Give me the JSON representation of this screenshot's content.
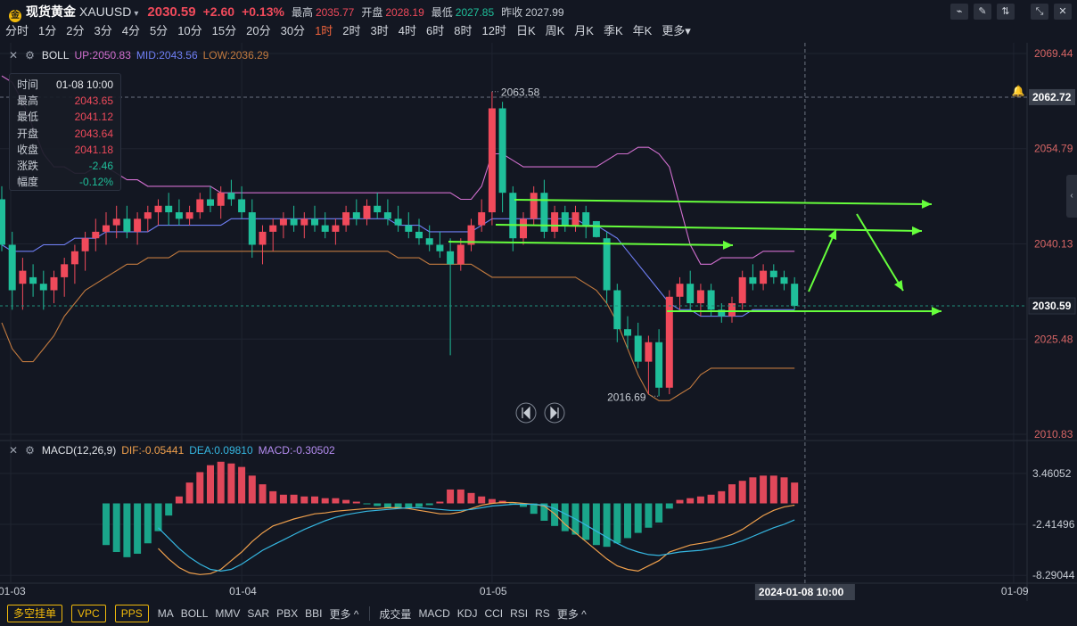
{
  "header": {
    "symbol_badge": "金",
    "symbol_name": "现货黄金",
    "symbol_code": "XAUUSD",
    "caret": "▾",
    "last_price": "2030.59",
    "change": "+2.60",
    "change_pct": "+0.13%",
    "stats": [
      {
        "label": "最高",
        "value": "2035.77",
        "tone": "red"
      },
      {
        "label": "开盘",
        "value": "2028.19",
        "tone": "red"
      },
      {
        "label": "最低",
        "value": "2027.85",
        "tone": "green"
      },
      {
        "label": "昨收",
        "value": "2027.99",
        "tone": "white"
      }
    ],
    "icons": [
      "indicator-icon",
      "draw-icon",
      "compare-icon",
      "expand-icon",
      "close-icon"
    ]
  },
  "timeframes": {
    "items": [
      "分时",
      "1分",
      "2分",
      "3分",
      "4分",
      "5分",
      "10分",
      "15分",
      "20分",
      "30分",
      "1时",
      "2时",
      "3时",
      "4时",
      "6时",
      "8时",
      "12时",
      "日K",
      "周K",
      "月K",
      "季K",
      "年K",
      "更多▾"
    ],
    "active": "1时"
  },
  "boll_legend": {
    "name": "BOLL",
    "up": "UP:2050.83",
    "mid": "MID:2043.56",
    "low": "LOW:2036.29",
    "colors": {
      "up": "#d16fcf",
      "mid": "#6f7ff5",
      "low": "#c27a3f"
    }
  },
  "macd_legend": {
    "name": "MACD(12,26,9)",
    "dif": "DIF:-0.05441",
    "dea": "DEA:0.09810",
    "macd": "MACD:-0.30502",
    "colors": {
      "dif": "#f0a04c",
      "dea": "#35b6e0",
      "macd": "#b48cf0"
    }
  },
  "info_box": {
    "rows": [
      {
        "label": "时间",
        "value": "01-08 10:00",
        "tone": "white"
      },
      {
        "label": "最高",
        "value": "2043.65",
        "tone": "red"
      },
      {
        "label": "最低",
        "value": "2041.12",
        "tone": "red"
      },
      {
        "label": "开盘",
        "value": "2043.64",
        "tone": "red"
      },
      {
        "label": "收盘",
        "value": "2041.18",
        "tone": "red"
      },
      {
        "label": "涨跌",
        "value": "-2.46",
        "tone": "green"
      },
      {
        "label": "幅度",
        "value": "-0.12%",
        "tone": "green"
      }
    ]
  },
  "bottom_bar": {
    "buttons": [
      "多空挂单",
      "VPC",
      "PPS"
    ],
    "main_indicators": [
      "MA",
      "BOLL",
      "MMV",
      "SAR",
      "PBX",
      "BBI",
      "更多 ^"
    ],
    "sub_indicators": [
      "成交量",
      "MACD",
      "KDJ",
      "CCI",
      "RSI",
      "RS",
      "更多 ^"
    ]
  },
  "chart_data": {
    "type": "candlestick",
    "price_axis": {
      "ticks": [
        2069.44,
        2054.79,
        2040.13,
        2025.48,
        2010.83
      ],
      "tick_labels": [
        "2069.44",
        "2054.79",
        "2040.13",
        "2025.48",
        "2010.83"
      ],
      "ylim": [
        2010.83,
        2069.44
      ]
    },
    "crosshair_price": "2062.72",
    "current_price": "2030.59",
    "crosshair_time": "2024-01-08 10:00",
    "x_labels": [
      {
        "label": "01-03",
        "index": 0
      },
      {
        "label": "01-04",
        "index": 23
      },
      {
        "label": "01-05",
        "index": 47
      },
      {
        "label": "01-09",
        "index": 97
      }
    ],
    "crosshair_index": 77,
    "high_annotation": "2063.58",
    "low_annotation": "2016.69",
    "candles": [
      {
        "o": 2047,
        "h": 2049,
        "l": 2039,
        "c": 2040
      },
      {
        "o": 2040,
        "h": 2042,
        "l": 2030,
        "c": 2033
      },
      {
        "o": 2034,
        "h": 2038,
        "l": 2030,
        "c": 2036
      },
      {
        "o": 2035,
        "h": 2037,
        "l": 2032,
        "c": 2034
      },
      {
        "o": 2034,
        "h": 2036,
        "l": 2030,
        "c": 2033
      },
      {
        "o": 2033,
        "h": 2036,
        "l": 2031,
        "c": 2035
      },
      {
        "o": 2035,
        "h": 2038,
        "l": 2032,
        "c": 2037
      },
      {
        "o": 2037,
        "h": 2040,
        "l": 2034,
        "c": 2039
      },
      {
        "o": 2039,
        "h": 2042,
        "l": 2036,
        "c": 2041
      },
      {
        "o": 2041,
        "h": 2044,
        "l": 2039,
        "c": 2042
      },
      {
        "o": 2042,
        "h": 2045,
        "l": 2040,
        "c": 2043
      },
      {
        "o": 2043,
        "h": 2046,
        "l": 2041,
        "c": 2044
      },
      {
        "o": 2044,
        "h": 2046,
        "l": 2041,
        "c": 2042
      },
      {
        "o": 2042,
        "h": 2045,
        "l": 2040,
        "c": 2044
      },
      {
        "o": 2044,
        "h": 2046,
        "l": 2042,
        "c": 2045
      },
      {
        "o": 2045,
        "h": 2047,
        "l": 2043,
        "c": 2046
      },
      {
        "o": 2046,
        "h": 2048,
        "l": 2043,
        "c": 2045
      },
      {
        "o": 2045,
        "h": 2047,
        "l": 2043,
        "c": 2044
      },
      {
        "o": 2044,
        "h": 2046,
        "l": 2043,
        "c": 2045
      },
      {
        "o": 2045,
        "h": 2048,
        "l": 2044,
        "c": 2047
      },
      {
        "o": 2047,
        "h": 2049,
        "l": 2045,
        "c": 2046
      },
      {
        "o": 2046,
        "h": 2049,
        "l": 2044,
        "c": 2048
      },
      {
        "o": 2048,
        "h": 2050,
        "l": 2046,
        "c": 2047
      },
      {
        "o": 2047,
        "h": 2049,
        "l": 2044,
        "c": 2045
      },
      {
        "o": 2045,
        "h": 2047,
        "l": 2038,
        "c": 2040
      },
      {
        "o": 2040,
        "h": 2043,
        "l": 2037,
        "c": 2042
      },
      {
        "o": 2042,
        "h": 2044,
        "l": 2039,
        "c": 2043
      },
      {
        "o": 2043,
        "h": 2045,
        "l": 2041,
        "c": 2044
      },
      {
        "o": 2044,
        "h": 2046,
        "l": 2042,
        "c": 2043
      },
      {
        "o": 2043,
        "h": 2045,
        "l": 2041,
        "c": 2044
      },
      {
        "o": 2044,
        "h": 2046,
        "l": 2042,
        "c": 2043
      },
      {
        "o": 2043,
        "h": 2045,
        "l": 2041,
        "c": 2042
      },
      {
        "o": 2042,
        "h": 2044,
        "l": 2040,
        "c": 2043
      },
      {
        "o": 2043,
        "h": 2046,
        "l": 2042,
        "c": 2045
      },
      {
        "o": 2045,
        "h": 2047,
        "l": 2043,
        "c": 2044
      },
      {
        "o": 2044,
        "h": 2047,
        "l": 2043,
        "c": 2046
      },
      {
        "o": 2046,
        "h": 2048,
        "l": 2044,
        "c": 2045
      },
      {
        "o": 2045,
        "h": 2047,
        "l": 2043,
        "c": 2044
      },
      {
        "o": 2044,
        "h": 2046,
        "l": 2042,
        "c": 2043
      },
      {
        "o": 2043,
        "h": 2045,
        "l": 2041,
        "c": 2042
      },
      {
        "o": 2042,
        "h": 2044,
        "l": 2040,
        "c": 2041
      },
      {
        "o": 2041,
        "h": 2043,
        "l": 2039,
        "c": 2040
      },
      {
        "o": 2040,
        "h": 2042,
        "l": 2038,
        "c": 2039
      },
      {
        "o": 2039,
        "h": 2041,
        "l": 2023,
        "c": 2037
      },
      {
        "o": 2037,
        "h": 2041,
        "l": 2036,
        "c": 2040
      },
      {
        "o": 2040,
        "h": 2044,
        "l": 2039,
        "c": 2043
      },
      {
        "o": 2043,
        "h": 2047,
        "l": 2042,
        "c": 2045
      },
      {
        "o": 2045,
        "h": 2063.58,
        "l": 2043,
        "c": 2061
      },
      {
        "o": 2061,
        "h": 2062,
        "l": 2045,
        "c": 2048
      },
      {
        "o": 2048,
        "h": 2049,
        "l": 2039,
        "c": 2041
      },
      {
        "o": 2041,
        "h": 2045,
        "l": 2040,
        "c": 2044
      },
      {
        "o": 2044,
        "h": 2049,
        "l": 2043,
        "c": 2048
      },
      {
        "o": 2048,
        "h": 2050,
        "l": 2041,
        "c": 2042
      },
      {
        "o": 2042,
        "h": 2046,
        "l": 2041,
        "c": 2045
      },
      {
        "o": 2045,
        "h": 2046,
        "l": 2042,
        "c": 2043
      },
      {
        "o": 2043,
        "h": 2046,
        "l": 2042,
        "c": 2045
      },
      {
        "o": 2045,
        "h": 2046,
        "l": 2041,
        "c": 2043
      },
      {
        "o": 2043.64,
        "h": 2043.65,
        "l": 2041.12,
        "c": 2041.18
      },
      {
        "o": 2041,
        "h": 2042,
        "l": 2031,
        "c": 2033
      },
      {
        "o": 2033,
        "h": 2034,
        "l": 2025,
        "c": 2027
      },
      {
        "o": 2027,
        "h": 2029,
        "l": 2024,
        "c": 2026
      },
      {
        "o": 2026,
        "h": 2028,
        "l": 2021,
        "c": 2022
      },
      {
        "o": 2022,
        "h": 2026,
        "l": 2017,
        "c": 2025
      },
      {
        "o": 2025,
        "h": 2027,
        "l": 2016.69,
        "c": 2018
      },
      {
        "o": 2018,
        "h": 2033,
        "l": 2017,
        "c": 2032
      },
      {
        "o": 2032,
        "h": 2035,
        "l": 2030,
        "c": 2034
      },
      {
        "o": 2034,
        "h": 2036,
        "l": 2030,
        "c": 2031
      },
      {
        "o": 2031,
        "h": 2034,
        "l": 2029,
        "c": 2033
      },
      {
        "o": 2033,
        "h": 2034,
        "l": 2029,
        "c": 2030
      },
      {
        "o": 2030,
        "h": 2031,
        "l": 2028,
        "c": 2029
      },
      {
        "o": 2029,
        "h": 2032,
        "l": 2028,
        "c": 2031
      },
      {
        "o": 2031,
        "h": 2036,
        "l": 2030,
        "c": 2035
      },
      {
        "o": 2035,
        "h": 2037,
        "l": 2033,
        "c": 2034
      },
      {
        "o": 2034,
        "h": 2037,
        "l": 2033,
        "c": 2036
      },
      {
        "o": 2036,
        "h": 2037,
        "l": 2034,
        "c": 2035
      },
      {
        "o": 2035,
        "h": 2036,
        "l": 2033,
        "c": 2034
      },
      {
        "o": 2034,
        "h": 2035,
        "l": 2030,
        "c": 2030.59
      }
    ],
    "boll_up": [
      2066,
      2065,
      2062,
      2058,
      2054,
      2052,
      2052,
      2051,
      2051,
      2052,
      2052,
      2051,
      2050,
      2050,
      2049,
      2049,
      2049,
      2049,
      2049,
      2049,
      2049,
      2048,
      2048,
      2048,
      2048,
      2048,
      2048,
      2048,
      2048,
      2048,
      2048,
      2048,
      2048,
      2048,
      2048,
      2048,
      2048,
      2048,
      2048,
      2048,
      2048,
      2048,
      2048,
      2048,
      2047,
      2047,
      2049,
      2054,
      2054,
      2053,
      2052,
      2052,
      2052,
      2052,
      2052,
      2052,
      2052,
      2052,
      2053,
      2054,
      2054,
      2055,
      2055,
      2054,
      2052,
      2046,
      2040,
      2037,
      2037,
      2038,
      2038,
      2038,
      2038,
      2039,
      2039,
      2039,
      2039
    ],
    "boll_mid": [
      2040,
      2039,
      2039,
      2039,
      2040,
      2040,
      2040,
      2041,
      2041,
      2041,
      2042,
      2042,
      2042,
      2042,
      2042,
      2043,
      2043,
      2043,
      2043,
      2043,
      2043,
      2043,
      2044,
      2044,
      2044,
      2044,
      2044,
      2044,
      2044,
      2044,
      2044,
      2044,
      2044,
      2044,
      2044,
      2044,
      2044,
      2044,
      2043,
      2043,
      2043,
      2042,
      2042,
      2042,
      2042,
      2042,
      2043,
      2044,
      2044,
      2044,
      2044,
      2044,
      2044,
      2044,
      2044,
      2044,
      2043,
      2043,
      2042,
      2041,
      2039,
      2037,
      2035,
      2033,
      2031,
      2030,
      2030,
      2029,
      2029,
      2029,
      2029,
      2029,
      2030,
      2030,
      2030,
      2030,
      2030
    ],
    "boll_low": [
      2028,
      2024,
      2022,
      2022,
      2024,
      2026,
      2029,
      2031,
      2033,
      2034,
      2035,
      2036,
      2037,
      2037,
      2038,
      2038,
      2038,
      2039,
      2039,
      2039,
      2039,
      2039,
      2039,
      2039,
      2039,
      2039,
      2039,
      2039,
      2039,
      2039,
      2039,
      2039,
      2039,
      2039,
      2039,
      2039,
      2039,
      2039,
      2038,
      2038,
      2038,
      2037,
      2037,
      2037,
      2037,
      2037,
      2036,
      2035,
      2035,
      2035,
      2035,
      2035,
      2035,
      2035,
      2035,
      2035,
      2034,
      2033,
      2031,
      2028,
      2024,
      2020,
      2017,
      2016,
      2016,
      2017,
      2018,
      2020,
      2021,
      2021,
      2021,
      2021,
      2021,
      2021,
      2021,
      2021,
      2021
    ],
    "macd_axis": {
      "tick_labels": [
        "3.46052",
        "-2.41496",
        "-8.29044"
      ],
      "ticks": [
        3.46052,
        -2.41496,
        -8.29044
      ],
      "ylim": [
        -9.4,
        5.6
      ]
    },
    "macd_hist": [
      -4.8,
      -5.6,
      -6.2,
      -5.8,
      -4.6,
      -3.2,
      -1.4,
      0.8,
      2.4,
      3.6,
      4.4,
      4.8,
      4.6,
      4.2,
      3.2,
      2.2,
      1.4,
      1.0,
      1.0,
      0.8,
      0.8,
      0.6,
      0.6,
      0.4,
      0.2,
      -0.1,
      -0.3,
      -0.5,
      -0.6,
      -0.5,
      -0.4,
      -0.2,
      0.2,
      1.6,
      1.6,
      1.2,
      0.8,
      0.5,
      0.3,
      -0.1,
      -0.4,
      -1.2,
      -2.0,
      -2.6,
      -3.2,
      -3.6,
      -4.2,
      -4.8,
      -5.0,
      -4.6,
      -4.0,
      -3.4,
      -2.8,
      -2.2,
      -0.6,
      0.4,
      0.6,
      0.8,
      1.0,
      1.4,
      2.2,
      2.6,
      3.0,
      3.2,
      3.2,
      3.0,
      2.4
    ],
    "macd_dif": [
      -5.2,
      -6.4,
      -7.4,
      -8.0,
      -8.2,
      -8.1,
      -7.6,
      -6.6,
      -5.6,
      -4.4,
      -3.4,
      -2.6,
      -2.2,
      -1.8,
      -1.5,
      -1.2,
      -1.1,
      -0.9,
      -0.8,
      -0.7,
      -0.6,
      -0.6,
      -0.5,
      -0.5,
      -0.6,
      -0.8,
      -1.0,
      -1.2,
      -1.2,
      -1.0,
      -0.6,
      -0.2,
      0.0,
      0.1,
      0.1,
      0.0,
      -0.1,
      -0.3,
      -1.2,
      -2.4,
      -3.4,
      -4.4,
      -5.4,
      -6.4,
      -7.2,
      -7.6,
      -7.8,
      -7.2,
      -6.6,
      -5.6,
      -5.2,
      -4.8,
      -4.6,
      -4.4,
      -4.0,
      -3.6,
      -3.0,
      -2.2,
      -1.4,
      -0.8,
      -0.4,
      -0.2
    ],
    "macd_dea": [
      -2.8,
      -4.0,
      -5.2,
      -6.2,
      -7.0,
      -7.6,
      -7.8,
      -7.6,
      -7.0,
      -6.2,
      -5.4,
      -4.8,
      -4.2,
      -3.6,
      -3.0,
      -2.5,
      -2.0,
      -1.6,
      -1.3,
      -1.1,
      -0.9,
      -0.8,
      -0.7,
      -0.6,
      -0.5,
      -0.5,
      -0.6,
      -0.7,
      -0.8,
      -0.8,
      -0.7,
      -0.5,
      -0.3,
      -0.2,
      -0.1,
      -0.1,
      -0.1,
      -0.2,
      -0.6,
      -1.2,
      -1.8,
      -2.5,
      -3.2,
      -3.9,
      -4.6,
      -5.2,
      -5.6,
      -5.9,
      -6.0,
      -5.8,
      -5.6,
      -5.5,
      -5.4,
      -5.2,
      -5.0,
      -4.7,
      -4.3,
      -3.8,
      -3.3,
      -2.8,
      -2.4,
      -1.9
    ],
    "annotations": [
      "horizontal-arrow",
      "horizontal-arrow",
      "horizontal-arrow",
      "horizontal-arrow",
      "up-arrow",
      "down-arrow"
    ]
  }
}
